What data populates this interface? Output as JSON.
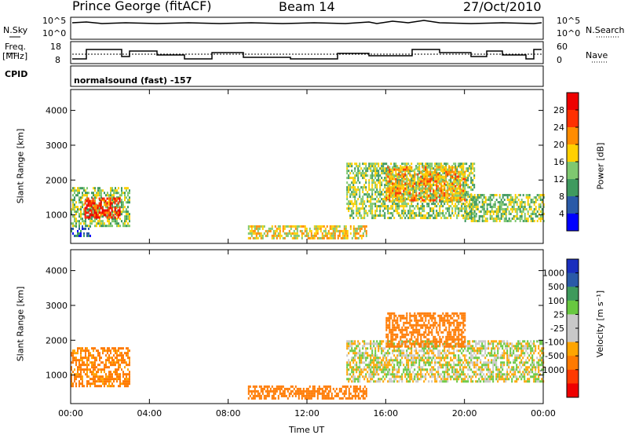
{
  "header": {
    "station": "Prince George (fitACF)",
    "beam": "Beam 14",
    "date": "27/Oct/2010"
  },
  "noise_panel": {
    "left_label": "N.Sky",
    "right_label": "N.Search",
    "left_ticks": [
      "10^5",
      "10^0"
    ],
    "right_ticks": [
      "10^5",
      "10^0"
    ]
  },
  "freq_panel": {
    "left_label_line1": "Freq.",
    "left_label_line2": "[MHz]",
    "right_label": "Nave",
    "left_ticks": [
      "18",
      "8"
    ],
    "right_ticks": [
      "60",
      "0"
    ]
  },
  "cpid": {
    "label": "CPID",
    "text": "normalsound (fast) -157"
  },
  "colors": {
    "power_scale": [
      "#0000ff",
      "#2a5aa8",
      "#3f9a5f",
      "#7fc870",
      "#ffd000",
      "#ff8c00",
      "#ff3000",
      "#ee0000"
    ],
    "velocity_scale": [
      "#1a2fbe",
      "#2a5aa8",
      "#3e9a5c",
      "#68c840",
      "#c8c8c8",
      "#c8c8c8",
      "#ffa500",
      "#ff7a00",
      "#ff3a00",
      "#ee0000"
    ]
  },
  "chart_data": [
    {
      "type": "heatmap",
      "title": "",
      "xlabel": "Time UT",
      "ylabel": "Slant Range [km]",
      "x_ticks": [
        "00:00",
        "04:00",
        "08:00",
        "12:00",
        "16:00",
        "20:00",
        "00:00"
      ],
      "y_ticks": [
        "1000",
        "2000",
        "3000",
        "4000"
      ],
      "xlim_hours": [
        0,
        24
      ],
      "ylim_km": [
        180,
        4600
      ],
      "colorbar": {
        "label": "Power [dB]",
        "ticks": [
          "4",
          "8",
          "12",
          "16",
          "20",
          "24",
          "28"
        ],
        "range": [
          0,
          32
        ]
      },
      "echo_regions": [
        {
          "t_start_h": 0.0,
          "t_end_h": 3.0,
          "r_min_km": 700,
          "r_max_km": 1800,
          "power_db": 14
        },
        {
          "t_start_h": 0.7,
          "t_end_h": 2.5,
          "r_min_km": 900,
          "r_max_km": 1500,
          "power_db": 28
        },
        {
          "t_start_h": 0.0,
          "t_end_h": 1.0,
          "r_min_km": 400,
          "r_max_km": 700,
          "power_db": 6
        },
        {
          "t_start_h": 9.0,
          "t_end_h": 15.0,
          "r_min_km": 300,
          "r_max_km": 700,
          "power_db": 18
        },
        {
          "t_start_h": 14.0,
          "t_end_h": 20.5,
          "r_min_km": 900,
          "r_max_km": 2500,
          "power_db": 14
        },
        {
          "t_start_h": 16.0,
          "t_end_h": 20.0,
          "r_min_km": 1400,
          "r_max_km": 2400,
          "power_db": 20
        },
        {
          "t_start_h": 20.0,
          "t_end_h": 24.0,
          "r_min_km": 800,
          "r_max_km": 1600,
          "power_db": 14
        }
      ]
    },
    {
      "type": "heatmap",
      "title": "",
      "xlabel": "Time UT",
      "ylabel": "Slant Range [km]",
      "x_ticks": [
        "00:00",
        "04:00",
        "08:00",
        "12:00",
        "16:00",
        "20:00",
        "00:00"
      ],
      "y_ticks": [
        "1000",
        "2000",
        "3000",
        "4000"
      ],
      "xlim_hours": [
        0,
        24
      ],
      "ylim_km": [
        180,
        4600
      ],
      "colorbar": {
        "label": "Velocity [m s⁻¹]",
        "ticks": [
          "1000",
          "500",
          "100",
          "25",
          "-25",
          "-100",
          "-500",
          "-1000"
        ],
        "range": [
          -1000,
          1000
        ]
      },
      "echo_regions": [
        {
          "t_start_h": 0.0,
          "t_end_h": 3.0,
          "r_min_km": 700,
          "r_max_km": 1800,
          "velocity_ms": -150
        },
        {
          "t_start_h": 9.0,
          "t_end_h": 15.0,
          "r_min_km": 300,
          "r_max_km": 700,
          "velocity_ms": -200
        },
        {
          "t_start_h": 14.0,
          "t_end_h": 24.0,
          "r_min_km": 800,
          "r_max_km": 2000,
          "velocity_ms": 0
        },
        {
          "t_start_h": 16.0,
          "t_end_h": 20.0,
          "r_min_km": 1800,
          "r_max_km": 2800,
          "velocity_ms": -200
        }
      ]
    }
  ]
}
